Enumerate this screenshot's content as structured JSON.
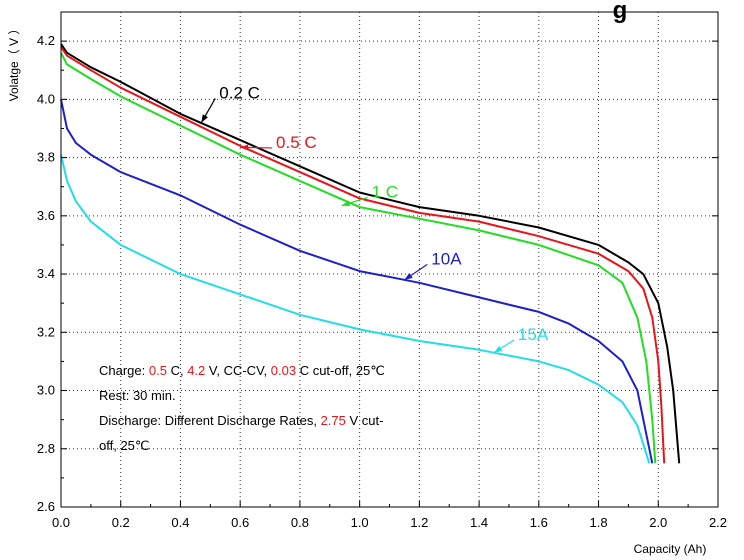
{
  "chart_data": {
    "type": "line",
    "title": "g",
    "xlabel": "Capacity (Ah)",
    "ylabel": "Volatge（ V ）",
    "xlim": [
      0.0,
      2.2
    ],
    "ylim": [
      2.6,
      4.3
    ],
    "x_ticks": [
      "0.0",
      "0.2",
      "0.4",
      "0.6",
      "0.8",
      "1.0",
      "1.2",
      "1.4",
      "1.6",
      "1.8",
      "2.0",
      "2.2"
    ],
    "y_ticks": [
      "2.6",
      "2.8",
      "3.0",
      "3.2",
      "3.4",
      "3.6",
      "3.8",
      "4.0",
      "4.2"
    ],
    "grid": true,
    "series": [
      {
        "name": "0.2 C",
        "color": "#000000",
        "points": [
          [
            0.0,
            4.19
          ],
          [
            0.02,
            4.16
          ],
          [
            0.1,
            4.11
          ],
          [
            0.2,
            4.06
          ],
          [
            0.4,
            3.95
          ],
          [
            0.6,
            3.86
          ],
          [
            0.8,
            3.77
          ],
          [
            1.0,
            3.68
          ],
          [
            1.2,
            3.63
          ],
          [
            1.4,
            3.6
          ],
          [
            1.6,
            3.56
          ],
          [
            1.8,
            3.5
          ],
          [
            1.9,
            3.44
          ],
          [
            1.95,
            3.4
          ],
          [
            2.0,
            3.3
          ],
          [
            2.03,
            3.15
          ],
          [
            2.05,
            3.0
          ],
          [
            2.07,
            2.75
          ]
        ]
      },
      {
        "name": "0.5 C",
        "color": "#e8141b",
        "points": [
          [
            0.0,
            4.18
          ],
          [
            0.02,
            4.15
          ],
          [
            0.1,
            4.1
          ],
          [
            0.2,
            4.04
          ],
          [
            0.4,
            3.94
          ],
          [
            0.6,
            3.84
          ],
          [
            0.8,
            3.75
          ],
          [
            1.0,
            3.66
          ],
          [
            1.2,
            3.61
          ],
          [
            1.4,
            3.58
          ],
          [
            1.6,
            3.53
          ],
          [
            1.8,
            3.47
          ],
          [
            1.9,
            3.41
          ],
          [
            1.95,
            3.35
          ],
          [
            1.98,
            3.25
          ],
          [
            2.0,
            3.1
          ],
          [
            2.01,
            2.95
          ],
          [
            2.02,
            2.75
          ]
        ]
      },
      {
        "name": "1 C",
        "color": "#22dd22",
        "points": [
          [
            0.0,
            4.16
          ],
          [
            0.02,
            4.12
          ],
          [
            0.1,
            4.07
          ],
          [
            0.2,
            4.01
          ],
          [
            0.4,
            3.91
          ],
          [
            0.6,
            3.81
          ],
          [
            0.8,
            3.72
          ],
          [
            1.0,
            3.63
          ],
          [
            1.2,
            3.59
          ],
          [
            1.4,
            3.55
          ],
          [
            1.6,
            3.5
          ],
          [
            1.8,
            3.43
          ],
          [
            1.88,
            3.37
          ],
          [
            1.93,
            3.25
          ],
          [
            1.96,
            3.1
          ],
          [
            1.98,
            2.9
          ],
          [
            1.99,
            2.75
          ]
        ]
      },
      {
        "name": "10A",
        "color": "#1f1fc8",
        "points": [
          [
            0.0,
            4.0
          ],
          [
            0.02,
            3.9
          ],
          [
            0.05,
            3.85
          ],
          [
            0.1,
            3.81
          ],
          [
            0.2,
            3.75
          ],
          [
            0.4,
            3.67
          ],
          [
            0.6,
            3.57
          ],
          [
            0.8,
            3.48
          ],
          [
            1.0,
            3.41
          ],
          [
            1.2,
            3.37
          ],
          [
            1.4,
            3.32
          ],
          [
            1.6,
            3.27
          ],
          [
            1.7,
            3.23
          ],
          [
            1.8,
            3.17
          ],
          [
            1.88,
            3.1
          ],
          [
            1.93,
            3.0
          ],
          [
            1.96,
            2.85
          ],
          [
            1.98,
            2.75
          ]
        ]
      },
      {
        "name": "15A",
        "color": "#22dde8",
        "points": [
          [
            0.0,
            3.81
          ],
          [
            0.02,
            3.72
          ],
          [
            0.05,
            3.65
          ],
          [
            0.1,
            3.58
          ],
          [
            0.2,
            3.5
          ],
          [
            0.4,
            3.4
          ],
          [
            0.6,
            3.33
          ],
          [
            0.8,
            3.26
          ],
          [
            1.0,
            3.21
          ],
          [
            1.2,
            3.17
          ],
          [
            1.4,
            3.14
          ],
          [
            1.6,
            3.1
          ],
          [
            1.7,
            3.07
          ],
          [
            1.8,
            3.02
          ],
          [
            1.88,
            2.96
          ],
          [
            1.93,
            2.88
          ],
          [
            1.97,
            2.75
          ]
        ]
      }
    ],
    "series_labels": [
      {
        "text": "0.2 C",
        "color": "#000000",
        "x": 0.53,
        "y": 4.01,
        "arrow_to": [
          0.47,
          3.92
        ]
      },
      {
        "text": "0.5 C",
        "color": "#e8141b",
        "x": 0.72,
        "y": 3.84,
        "arrow_to": [
          0.6,
          3.835
        ]
      },
      {
        "text": "1 C",
        "color": "#22dd22",
        "x": 1.04,
        "y": 3.67,
        "arrow_to": [
          0.94,
          3.635
        ]
      },
      {
        "text": "10A",
        "color": "#1f1fc8",
        "x": 1.24,
        "y": 3.44,
        "arrow_to": [
          1.15,
          3.38
        ]
      },
      {
        "text": "15A",
        "color": "#22dde8",
        "x": 1.53,
        "y": 3.18,
        "arrow_to": [
          1.45,
          3.13
        ]
      }
    ]
  },
  "note": {
    "line1": [
      {
        "text": "Charge: ",
        "red": false
      },
      {
        "text": "0.5",
        "red": true
      },
      {
        "text": " C, ",
        "red": false
      },
      {
        "text": "4.2",
        "red": true
      },
      {
        "text": " V, CC-CV, ",
        "red": false
      },
      {
        "text": "0.03",
        "red": true
      },
      {
        "text": " C cut-off, 25℃",
        "red": false
      }
    ],
    "line2": [
      {
        "text": "Rest: 30  min.",
        "red": false
      }
    ],
    "line3": [
      {
        "text": "Discharge: Different Discharge Rates, ",
        "red": false
      },
      {
        "text": "2.75",
        "red": true
      },
      {
        "text": " V cut-",
        "red": false
      }
    ],
    "line4": [
      {
        "text": "off, 25℃",
        "red": false
      }
    ]
  }
}
